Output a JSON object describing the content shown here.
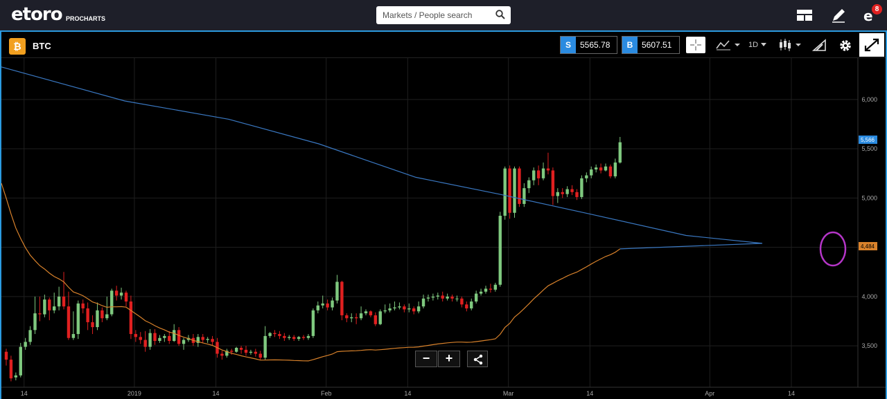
{
  "app": {
    "logo": "etoro",
    "logo_sub": "PROCHARTS",
    "search_placeholder": "Markets / People search",
    "notifications_count": "8"
  },
  "instrument": {
    "name": "BTC",
    "icon": "bitcoin-icon",
    "sell_tag": "S",
    "sell_price": "5565.78",
    "buy_tag": "B",
    "buy_price": "5607.51",
    "timeframe": "1D"
  },
  "colors": {
    "accent": "#2b9be0",
    "up": "#7fc97f",
    "down": "#e02020",
    "ma_long": "#3a78c2",
    "ma_short": "#d9822b",
    "highlight": "#b535c8"
  },
  "chart_data": {
    "type": "candlestick",
    "y_ticks": [
      "6,000",
      "5,500",
      "5,000",
      "4,500",
      "4,000",
      "3,500"
    ],
    "y_tick_values": [
      6000,
      5500,
      5000,
      4500,
      4000,
      3500
    ],
    "x_ticks": [
      "14",
      "2019",
      "14",
      "Feb",
      "14",
      "Mar",
      "14",
      "Apr",
      "14"
    ],
    "ylim": [
      3080,
      6420
    ],
    "price_label": "5,566",
    "price_value": 5566,
    "ma_label": "4,484",
    "ma_value": 4484,
    "candles": [
      [
        3440,
        3360,
        3470,
        3300
      ],
      [
        3360,
        3170,
        3400,
        3140
      ],
      [
        3180,
        3200,
        3230,
        3150
      ],
      [
        3200,
        3490,
        3530,
        3180
      ],
      [
        3490,
        3540,
        3580,
        3460
      ],
      [
        3540,
        3660,
        3700,
        3510
      ],
      [
        3660,
        3830,
        4000,
        3620
      ],
      [
        3830,
        3820,
        4000,
        3750
      ],
      [
        3820,
        3970,
        4020,
        3790
      ],
      [
        3970,
        3860,
        3990,
        3760
      ],
      [
        3860,
        3900,
        4040,
        3830
      ],
      [
        3900,
        4000,
        4100,
        3860
      ],
      [
        4000,
        3900,
        4250,
        3870
      ],
      [
        3900,
        3580,
        4050,
        3560
      ],
      [
        3580,
        3620,
        3850,
        3560
      ],
      [
        3620,
        3930,
        3960,
        3570
      ],
      [
        3930,
        3880,
        3970,
        3830
      ],
      [
        3880,
        3740,
        3940,
        3660
      ],
      [
        3740,
        3690,
        3810,
        3620
      ],
      [
        3690,
        3860,
        3940,
        3660
      ],
      [
        3860,
        3780,
        3890,
        3740
      ],
      [
        3780,
        3820,
        4000,
        3760
      ],
      [
        3820,
        4060,
        4080,
        3800
      ],
      [
        4060,
        4010,
        4110,
        3960
      ],
      [
        4010,
        4040,
        4090,
        3970
      ],
      [
        4040,
        3950,
        4060,
        3900
      ],
      [
        3950,
        3620,
        4010,
        3570
      ],
      [
        3620,
        3590,
        3660,
        3540
      ],
      [
        3590,
        3560,
        3640,
        3520
      ],
      [
        3560,
        3490,
        3650,
        3440
      ],
      [
        3490,
        3630,
        3670,
        3460
      ],
      [
        3630,
        3550,
        3670,
        3510
      ],
      [
        3550,
        3580,
        3610,
        3530
      ],
      [
        3580,
        3600,
        3620,
        3540
      ],
      [
        3600,
        3550,
        3650,
        3520
      ],
      [
        3550,
        3660,
        3720,
        3540
      ],
      [
        3660,
        3520,
        3690,
        3500
      ],
      [
        3520,
        3560,
        3580,
        3460
      ],
      [
        3560,
        3580,
        3610,
        3540
      ],
      [
        3580,
        3530,
        3620,
        3500
      ],
      [
        3530,
        3590,
        3620,
        3490
      ],
      [
        3590,
        3560,
        3620,
        3530
      ],
      [
        3560,
        3570,
        3590,
        3530
      ],
      [
        3570,
        3540,
        3600,
        3500
      ],
      [
        3540,
        3420,
        3580,
        3380
      ],
      [
        3420,
        3400,
        3450,
        3360
      ],
      [
        3400,
        3450,
        3470,
        3380
      ],
      [
        3450,
        3440,
        3470,
        3410
      ],
      [
        3440,
        3480,
        3490,
        3430
      ],
      [
        3480,
        3460,
        3500,
        3420
      ],
      [
        3460,
        3430,
        3500,
        3400
      ],
      [
        3430,
        3440,
        3460,
        3410
      ],
      [
        3440,
        3420,
        3470,
        3390
      ],
      [
        3420,
        3380,
        3450,
        3360
      ],
      [
        3380,
        3600,
        3700,
        3360
      ],
      [
        3600,
        3630,
        3640,
        3580
      ],
      [
        3630,
        3620,
        3660,
        3590
      ],
      [
        3620,
        3600,
        3650,
        3570
      ],
      [
        3600,
        3580,
        3630,
        3550
      ],
      [
        3580,
        3590,
        3610,
        3560
      ],
      [
        3590,
        3570,
        3610,
        3550
      ],
      [
        3570,
        3590,
        3600,
        3550
      ],
      [
        3590,
        3580,
        3610,
        3560
      ],
      [
        3580,
        3600,
        3620,
        3560
      ],
      [
        3600,
        3860,
        3880,
        3580
      ],
      [
        3860,
        3910,
        3950,
        3830
      ],
      [
        3910,
        3930,
        4010,
        3880
      ],
      [
        3930,
        3890,
        3970,
        3860
      ],
      [
        3890,
        3960,
        3990,
        3860
      ],
      [
        3960,
        4150,
        4220,
        3930
      ],
      [
        4150,
        3810,
        4160,
        3760
      ],
      [
        3810,
        3780,
        3830,
        3740
      ],
      [
        3780,
        3790,
        3830,
        3740
      ],
      [
        3790,
        3780,
        3830,
        3720
      ],
      [
        3780,
        3830,
        3900,
        3760
      ],
      [
        3830,
        3850,
        3870,
        3810
      ],
      [
        3850,
        3810,
        3860,
        3790
      ],
      [
        3810,
        3720,
        3840,
        3700
      ],
      [
        3720,
        3850,
        3870,
        3710
      ],
      [
        3850,
        3860,
        3920,
        3830
      ],
      [
        3860,
        3880,
        3930,
        3840
      ],
      [
        3880,
        3890,
        3950,
        3860
      ],
      [
        3890,
        3900,
        3940,
        3870
      ],
      [
        3900,
        3870,
        3920,
        3840
      ],
      [
        3870,
        3880,
        3930,
        3840
      ],
      [
        3880,
        3850,
        3900,
        3820
      ],
      [
        3850,
        3900,
        3950,
        3830
      ],
      [
        3900,
        3980,
        4020,
        3880
      ],
      [
        3980,
        3990,
        4020,
        3950
      ],
      [
        3990,
        4000,
        4030,
        3960
      ],
      [
        4000,
        4010,
        4040,
        3970
      ],
      [
        4010,
        3980,
        4050,
        3950
      ],
      [
        3980,
        4000,
        4030,
        3960
      ],
      [
        4000,
        3980,
        4020,
        3950
      ],
      [
        3980,
        3980,
        4010,
        3950
      ],
      [
        3980,
        3920,
        4000,
        3890
      ],
      [
        3920,
        3880,
        3950,
        3850
      ],
      [
        3880,
        3950,
        3980,
        3860
      ],
      [
        3950,
        4030,
        4060,
        3930
      ],
      [
        4030,
        4050,
        4080,
        4010
      ],
      [
        4050,
        4080,
        4110,
        4030
      ],
      [
        4080,
        4070,
        4130,
        4040
      ],
      [
        4070,
        4120,
        4140,
        4050
      ],
      [
        4120,
        4820,
        4860,
        4100
      ],
      [
        4820,
        5300,
        5320,
        4780
      ],
      [
        5300,
        4850,
        5330,
        4790
      ],
      [
        4850,
        5300,
        5320,
        4800
      ],
      [
        5300,
        4940,
        5320,
        4910
      ],
      [
        4940,
        5100,
        5150,
        4910
      ],
      [
        5100,
        5180,
        5210,
        5050
      ],
      [
        5180,
        5280,
        5310,
        5130
      ],
      [
        5280,
        5200,
        5330,
        5130
      ],
      [
        5200,
        5300,
        5360,
        5180
      ],
      [
        5300,
        5280,
        5460,
        5240
      ],
      [
        5280,
        5020,
        5310,
        4930
      ],
      [
        5020,
        5060,
        5100,
        4950
      ],
      [
        5060,
        5040,
        5100,
        5000
      ],
      [
        5040,
        5090,
        5120,
        5010
      ],
      [
        5090,
        5060,
        5130,
        5030
      ],
      [
        5060,
        5010,
        5090,
        4980
      ],
      [
        5010,
        5200,
        5230,
        4990
      ],
      [
        5200,
        5230,
        5260,
        5160
      ],
      [
        5230,
        5290,
        5320,
        5200
      ],
      [
        5290,
        5310,
        5340,
        5260
      ],
      [
        5310,
        5280,
        5350,
        5250
      ],
      [
        5280,
        5320,
        5350,
        5270
      ],
      [
        5320,
        5220,
        5340,
        5200
      ],
      [
        5220,
        5360,
        5400,
        5200
      ],
      [
        5360,
        5566,
        5620,
        5350
      ]
    ]
  }
}
